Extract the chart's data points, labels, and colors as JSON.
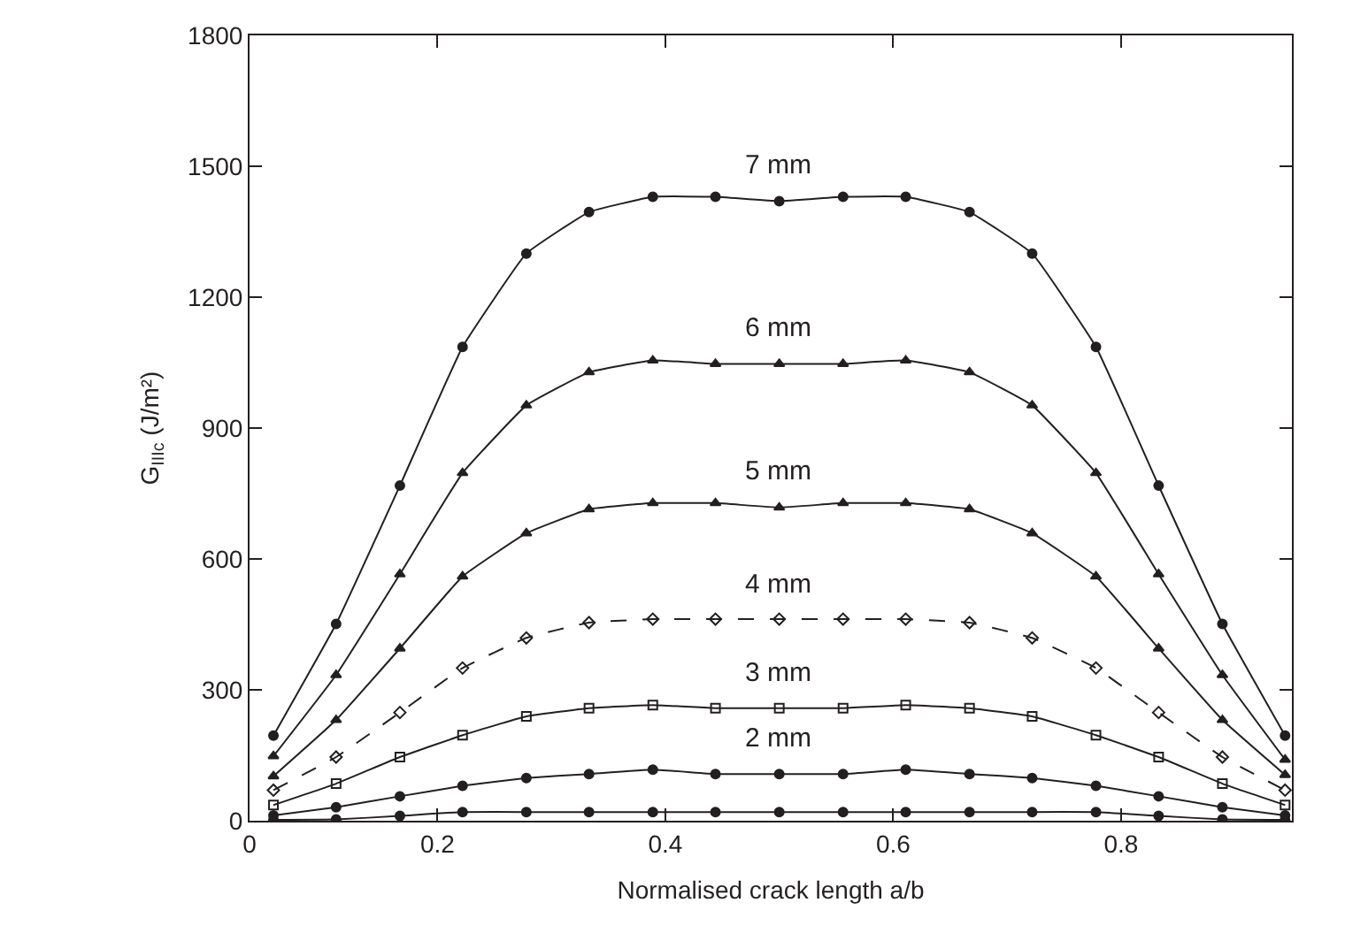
{
  "chart_data": {
    "type": "line",
    "xlabel": "Normalised crack length a/b",
    "ylabel": "G$_{IIIc}$ (J/m²)",
    "x": [
      0.056,
      0.111,
      0.167,
      0.222,
      0.278,
      0.333,
      0.389,
      0.444,
      0.5,
      0.556,
      0.611,
      0.667,
      0.722,
      0.778,
      0.833,
      0.889,
      0.944
    ],
    "xlim": [
      0.035,
      0.95
    ],
    "xticks": [
      {
        "value": 0.035,
        "label": "0"
      },
      0.2,
      0.4,
      0.6,
      0.8
    ],
    "ylim": [
      0,
      1800
    ],
    "yticks": [
      0,
      300,
      600,
      900,
      1200,
      1500,
      1800
    ],
    "legend": false,
    "series": [
      {
        "name": "7 mm",
        "color": "#231f20",
        "marker": "circle",
        "line_style": "solid",
        "values": [
          195,
          451,
          768,
          1086,
          1300,
          1395,
          1430,
          1430,
          1420,
          1430,
          1430,
          1395,
          1300,
          1086,
          768,
          451,
          195
        ]
      },
      {
        "name": "6 mm",
        "color": "#231f20",
        "marker": "triangle",
        "line_style": "solid",
        "values": [
          148,
          334,
          565,
          797,
          952,
          1028,
          1055,
          1047,
          1047,
          1047,
          1055,
          1028,
          952,
          797,
          565,
          334,
          140
        ]
      },
      {
        "name": "5 mm",
        "color": "#231f20",
        "marker": "triangle",
        "line_style": "solid",
        "values": [
          102,
          231,
          395,
          560,
          659,
          714,
          728,
          728,
          718,
          728,
          728,
          714,
          659,
          560,
          395,
          231,
          105
        ]
      },
      {
        "name": "4 mm",
        "color": "#231f20",
        "marker": "diamond",
        "line_style": "dashed",
        "values": [
          70,
          146,
          248,
          350,
          419,
          454,
          462,
          462,
          462,
          462,
          462,
          454,
          419,
          350,
          248,
          146,
          70
        ]
      },
      {
        "name": "3 mm",
        "color": "#231f20",
        "marker": "square",
        "line_style": "solid",
        "values": [
          36,
          85,
          146,
          196,
          239,
          258,
          265,
          258,
          258,
          258,
          265,
          258,
          239,
          196,
          146,
          85,
          36
        ]
      },
      {
        "name": "2 mm",
        "color": "#231f20",
        "marker": "circle",
        "line_style": "solid",
        "values": [
          12,
          31,
          56,
          80,
          98,
          107,
          117,
          107,
          107,
          107,
          117,
          107,
          98,
          80,
          56,
          31,
          12
        ]
      },
      {
        "color": "#231f20",
        "marker": "circle",
        "line_style": "solid",
        "values": [
          2,
          3,
          11,
          20,
          20,
          20,
          20,
          20,
          20,
          20,
          20,
          20,
          20,
          20,
          11,
          3,
          2
        ]
      }
    ]
  }
}
